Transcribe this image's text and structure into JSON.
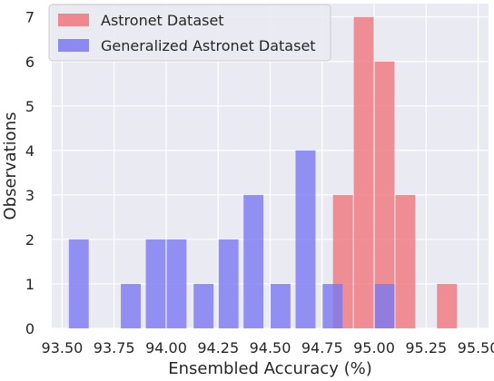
{
  "colors": {
    "plot_background": "#eaeaf2",
    "grid": "#ffffff",
    "astronet": "#f0767c",
    "generalized": "#7b78f0",
    "overlap": "#7a3fb5",
    "legend_border": "#cccccc"
  },
  "chart_data": {
    "type": "bar",
    "title": "",
    "xlabel": "Ensembled Accuracy (%)",
    "ylabel": "Observations",
    "xlim": [
      93.45,
      95.55
    ],
    "ylim": [
      0,
      7.3
    ],
    "xticks": [
      93.5,
      93.75,
      94.0,
      94.25,
      94.5,
      94.75,
      95.0,
      95.25,
      95.5
    ],
    "xtick_labels": [
      "93.50",
      "93.75",
      "94.00",
      "94.25",
      "94.50",
      "94.75",
      "95.00",
      "95.25",
      "95.50"
    ],
    "yticks": [
      0,
      1,
      2,
      3,
      4,
      5,
      6,
      7
    ],
    "ytick_labels": [
      "0",
      "1",
      "2",
      "3",
      "4",
      "5",
      "6",
      "7"
    ],
    "grid": true,
    "legend_position": "top-left",
    "series": [
      {
        "name": "Astronet Dataset",
        "color": "#f0767c",
        "bin_width": 0.1,
        "bins": [
          {
            "left": 94.8,
            "count": 3
          },
          {
            "left": 94.9,
            "count": 7
          },
          {
            "left": 95.0,
            "count": 6
          },
          {
            "left": 95.1,
            "count": 3
          },
          {
            "left": 95.3,
            "count": 1
          }
        ]
      },
      {
        "name": "Generalized Astronet Dataset",
        "color": "#7b78f0",
        "bin_width": 0.1,
        "bins": [
          {
            "left": 93.53,
            "count": 2
          },
          {
            "left": 93.78,
            "count": 1
          },
          {
            "left": 93.9,
            "count": 2
          },
          {
            "left": 94.0,
            "count": 2
          },
          {
            "left": 94.13,
            "count": 1
          },
          {
            "left": 94.25,
            "count": 2
          },
          {
            "left": 94.37,
            "count": 3
          },
          {
            "left": 94.5,
            "count": 1
          },
          {
            "left": 94.62,
            "count": 4
          },
          {
            "left": 94.75,
            "count": 1
          },
          {
            "left": 95.0,
            "count": 1
          }
        ]
      }
    ]
  }
}
